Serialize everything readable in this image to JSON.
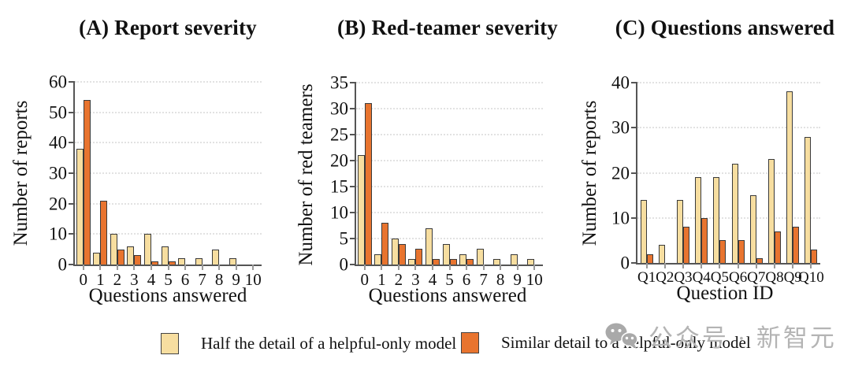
{
  "watermark": {
    "text": "公众号 · 新智元",
    "icon": "wechat-icon"
  },
  "legend": [
    {
      "label": "Half the detail of a helpful-only model",
      "color": "#F7DEA0"
    },
    {
      "label": "Similar detail to a helpful-only model",
      "color": "#E8742F"
    }
  ],
  "colors": {
    "bar_light": "#F7DEA0",
    "bar_orange": "#E8742F",
    "bar_outline": "#3a3a3a",
    "grid": "#e2e2e2",
    "axis": "#555555",
    "watermark_gray": "#b4b4b4"
  },
  "chart_data": [
    {
      "type": "bar",
      "title": "(A) Report severity",
      "xlabel": "Questions answered",
      "ylabel": "Number of reports",
      "categories": [
        "0",
        "1",
        "2",
        "3",
        "4",
        "5",
        "6",
        "7",
        "8",
        "9",
        "10"
      ],
      "series": [
        {
          "name": "Half the detail of a helpful-only model",
          "values": [
            38,
            4,
            10,
            6,
            10,
            6,
            2,
            2,
            5,
            2,
            0
          ]
        },
        {
          "name": "Similar detail to a helpful-only model",
          "values": [
            54,
            21,
            5,
            3,
            1,
            1,
            0,
            0,
            0,
            0,
            0
          ]
        }
      ],
      "ylim": [
        0,
        60
      ],
      "ytick_step": 10,
      "grid": true,
      "legend_position": "bottom"
    },
    {
      "type": "bar",
      "title": "(B) Red-teamer severity",
      "xlabel": "Questions answered",
      "ylabel": "Number of red teamers",
      "categories": [
        "0",
        "1",
        "2",
        "3",
        "4",
        "5",
        "6",
        "7",
        "8",
        "9",
        "10"
      ],
      "series": [
        {
          "name": "Half the detail of a helpful-only model",
          "values": [
            21,
            2,
            5,
            1,
            7,
            4,
            2,
            3,
            1,
            2,
            1
          ]
        },
        {
          "name": "Similar detail to a helpful-only model",
          "values": [
            31,
            8,
            4,
            3,
            1,
            1,
            1,
            0,
            0,
            0,
            0
          ]
        }
      ],
      "ylim": [
        0,
        35
      ],
      "ytick_step": 5,
      "grid": true,
      "legend_position": "bottom"
    },
    {
      "type": "bar",
      "title": "(C) Questions answered",
      "xlabel": "Question ID",
      "ylabel": "Number of reports",
      "categories": [
        "Q1",
        "Q2",
        "Q3",
        "Q4",
        "Q5",
        "Q6",
        "Q7",
        "Q8",
        "Q9",
        "Q10"
      ],
      "series": [
        {
          "name": "Half the detail of a helpful-only model",
          "values": [
            14,
            4,
            14,
            19,
            19,
            22,
            15,
            23,
            38,
            28
          ]
        },
        {
          "name": "Similar detail to a helpful-only model",
          "values": [
            2,
            0,
            8,
            10,
            5,
            5,
            1,
            7,
            8,
            3
          ]
        }
      ],
      "ylim": [
        0,
        40
      ],
      "ytick_step": 10,
      "grid": true,
      "legend_position": "bottom"
    }
  ]
}
